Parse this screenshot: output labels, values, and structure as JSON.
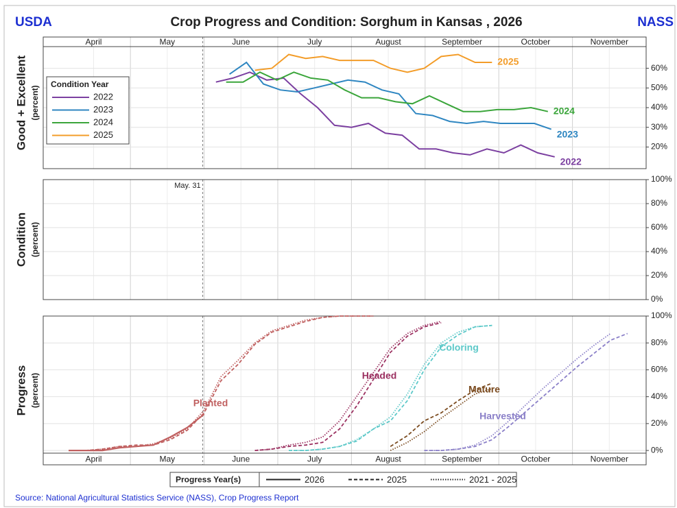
{
  "header": {
    "left": "USDA",
    "title": "Crop Progress and Condition: Sorghum in Kansas , 2026",
    "right": "NASS"
  },
  "footer": {
    "source": "Source: National Agricultural Statistics Service (NASS), Crop Progress Report"
  },
  "chart_data": [
    {
      "type": "line",
      "ylabel": "Good + Excellent",
      "ylabel_sub": "(percent)",
      "month_strip": "top",
      "categories": [
        "April",
        "May",
        "June",
        "July",
        "August",
        "September",
        "October",
        "November"
      ],
      "xlim": [
        -0.8,
        34.8
      ],
      "ylim": [
        9,
        71
      ],
      "yticks": [
        {
          "value": 20,
          "label": "20%"
        },
        {
          "value": 30,
          "label": "30%"
        },
        {
          "value": 40,
          "label": "40%"
        },
        {
          "value": 50,
          "label": "50%"
        },
        {
          "value": 60,
          "label": "60%"
        }
      ],
      "legend_title": "Condition Year",
      "series": [
        {
          "name": "2022",
          "color": "#7b3fa0",
          "x": [
            9.4,
            10.4,
            11.4,
            12.4,
            13.4,
            14.4,
            15.4,
            16.4,
            17.4,
            18.4,
            19.4,
            20.4,
            21.4,
            22.4,
            23.4,
            24.4,
            25.4,
            26.4,
            27.4,
            28.4,
            29.4
          ],
          "values": [
            53,
            55,
            58,
            54,
            55,
            47,
            40,
            31,
            30,
            32,
            27,
            26,
            19,
            19,
            17,
            16,
            19,
            17,
            21,
            17,
            15
          ]
        },
        {
          "name": "2023",
          "color": "#2e86c1",
          "x": [
            10.2,
            11.2,
            12.2,
            13.2,
            14.2,
            15.2,
            16.2,
            17.2,
            18.2,
            19.2,
            20.2,
            21.2,
            22.2,
            23.2,
            24.2,
            25.2,
            26.2,
            27.2,
            28.2,
            29.2
          ],
          "values": [
            57,
            63,
            52,
            49,
            48,
            50,
            52,
            54,
            53,
            49,
            47,
            37,
            36,
            33,
            32,
            33,
            32,
            32,
            32,
            29
          ]
        },
        {
          "name": "2024",
          "color": "#3aa53a",
          "x": [
            10,
            11,
            12,
            13,
            14,
            15,
            16,
            17,
            18,
            19,
            20,
            21,
            22,
            23,
            24,
            25,
            26,
            27,
            28,
            29
          ],
          "values": [
            53,
            53,
            58,
            54,
            58,
            55,
            54,
            49,
            45,
            45,
            43,
            42,
            46,
            42,
            38,
            38,
            39,
            39,
            40,
            38
          ]
        },
        {
          "name": "2025",
          "color": "#f39c28",
          "x": [
            11.7,
            12.7,
            13.7,
            14.7,
            15.7,
            16.7,
            17.7,
            18.7,
            19.7,
            20.7,
            21.7,
            22.7,
            23.7,
            24.7,
            25.7
          ],
          "values": [
            59,
            60,
            67,
            65,
            66,
            64,
            64,
            64,
            60,
            58,
            60,
            66,
            67,
            63,
            63
          ]
        }
      ]
    },
    {
      "type": "line",
      "ylabel": "Condition",
      "ylabel_sub": "(percent)",
      "annotation": "May. 31",
      "categories": [
        "April",
        "May",
        "June",
        "July",
        "August",
        "September",
        "October",
        "November"
      ],
      "xlim": [
        -0.8,
        34.8
      ],
      "ylim": [
        0,
        100
      ],
      "yticks": [
        {
          "value": 0,
          "label": "0%"
        },
        {
          "value": 20,
          "label": "20%"
        },
        {
          "value": 40,
          "label": "40%"
        },
        {
          "value": 60,
          "label": "60%"
        },
        {
          "value": 80,
          "label": "80%"
        },
        {
          "value": 100,
          "label": "100%"
        }
      ],
      "series": []
    },
    {
      "type": "progress",
      "ylabel": "Progress",
      "ylabel_sub": "(percent)",
      "month_strip": "bottom",
      "categories": [
        "April",
        "May",
        "June",
        "July",
        "August",
        "September",
        "October",
        "November"
      ],
      "xlim": [
        -0.8,
        34.8
      ],
      "ylim": [
        -2,
        100
      ],
      "yticks": [
        {
          "value": 0,
          "label": "0%"
        },
        {
          "value": 20,
          "label": "20%"
        },
        {
          "value": 40,
          "label": "40%"
        },
        {
          "value": 60,
          "label": "60%"
        },
        {
          "value": 80,
          "label": "80%"
        },
        {
          "value": 100,
          "label": "100%"
        }
      ],
      "legend_title": "Progress Year(s)",
      "years": [
        {
          "name": "2026",
          "dash": "solid"
        },
        {
          "name": "2025",
          "dash": "dashed"
        },
        {
          "name": "2021 - 2025",
          "dash": "dotted"
        }
      ],
      "crops": [
        {
          "name": "Planted",
          "color": "#c06060",
          "series": [
            {
              "x": [
                0.7,
                1.7,
                2.7,
                3.7,
                4.7,
                5.7,
                6.7,
                7.7,
                8.7
              ],
              "values": [
                0,
                0,
                0,
                2,
                3,
                4,
                10,
                17,
                27
              ]
            },
            {
              "x": [
                0.7,
                1.7,
                2.7,
                3.7,
                4.7,
                5.7,
                6.7,
                7.7,
                8.7,
                9.7,
                10.7,
                11.7,
                12.7,
                13.7,
                14.7,
                15.7,
                16.7,
                17.7,
                18.7
              ],
              "values": [
                0,
                0,
                1,
                3,
                4,
                4,
                8,
                15,
                28,
                52,
                64,
                79,
                88,
                92,
                96,
                99,
                100,
                100,
                100
              ]
            },
            {
              "x": [
                0.7,
                1.7,
                2.7,
                3.7,
                4.7,
                5.7,
                6.7,
                7.7,
                8.7,
                9.7,
                10.7,
                11.7,
                12.7,
                13.7,
                14.7,
                15.7,
                16.7,
                17.7,
                18.7
              ],
              "values": [
                0,
                0,
                1,
                3,
                3,
                5,
                9,
                16,
                30,
                55,
                67,
                80,
                89,
                93,
                97,
                99,
                100,
                100,
                100
              ]
            }
          ]
        },
        {
          "name": "Headed",
          "color": "#9b3060",
          "series": [
            null,
            {
              "x": [
                11.7,
                12.7,
                13.7,
                14.7,
                15.7,
                16.7,
                17.7,
                18.7,
                19.7,
                20.7,
                21.7,
                22.7
              ],
              "values": [
                0,
                1,
                3,
                4,
                6,
                16,
                33,
                53,
                73,
                85,
                92,
                95
              ]
            },
            {
              "x": [
                11.7,
                12.7,
                13.7,
                14.7,
                15.7,
                16.7,
                17.7,
                18.7,
                19.7,
                20.7,
                21.7,
                22.7
              ],
              "values": [
                0,
                1,
                4,
                6,
                10,
                22,
                40,
                58,
                76,
                87,
                93,
                96
              ]
            }
          ]
        },
        {
          "name": "Coloring",
          "color": "#5bc8c8",
          "series": [
            null,
            {
              "x": [
                13.7,
                14.7,
                15.7,
                16.7,
                17.7,
                18.7,
                19.7,
                20.7,
                21.7,
                22.7,
                23.7,
                24.7,
                25.7
              ],
              "values": [
                0,
                0,
                1,
                3,
                7,
                16,
                22,
                37,
                60,
                77,
                86,
                92,
                93
              ]
            },
            {
              "x": [
                13.7,
                14.7,
                15.7,
                16.7,
                17.7,
                18.7,
                19.7,
                20.7,
                21.7,
                22.7,
                23.7,
                24.7,
                25.7
              ],
              "values": [
                0,
                0,
                1,
                3,
                8,
                16,
                25,
                42,
                64,
                80,
                88,
                92,
                93
              ]
            }
          ]
        },
        {
          "name": "Mature",
          "color": "#7a4a1e",
          "series": [
            null,
            {
              "x": [
                19.7,
                20.7,
                21.7,
                22.7,
                23.7,
                24.7,
                25.7
              ],
              "values": [
                3,
                11,
                22,
                28,
                37,
                45,
                50
              ]
            },
            {
              "x": [
                19.7,
                20.7,
                21.7,
                22.7,
                23.7,
                24.7,
                25.7
              ],
              "values": [
                0,
                6,
                14,
                24,
                33,
                42,
                46
              ]
            }
          ]
        },
        {
          "name": "Harvested",
          "color": "#8a7fc8",
          "series": [
            null,
            {
              "x": [
                21.7,
                22.7,
                23.7,
                24.7,
                25.7,
                26.7,
                27.7,
                28.7,
                29.7,
                30.7,
                31.7,
                32.7,
                33.7
              ],
              "values": [
                0,
                0,
                1,
                3,
                8,
                18,
                29,
                40,
                51,
                62,
                72,
                82,
                87
              ]
            },
            {
              "x": [
                21.7,
                22.7,
                23.7,
                24.7,
                25.7,
                26.7,
                27.7,
                28.7,
                29.7,
                30.7,
                31.7,
                32.7
              ],
              "values": [
                0,
                0,
                1,
                4,
                11,
                22,
                34,
                46,
                57,
                68,
                78,
                87
              ]
            }
          ]
        }
      ]
    }
  ]
}
